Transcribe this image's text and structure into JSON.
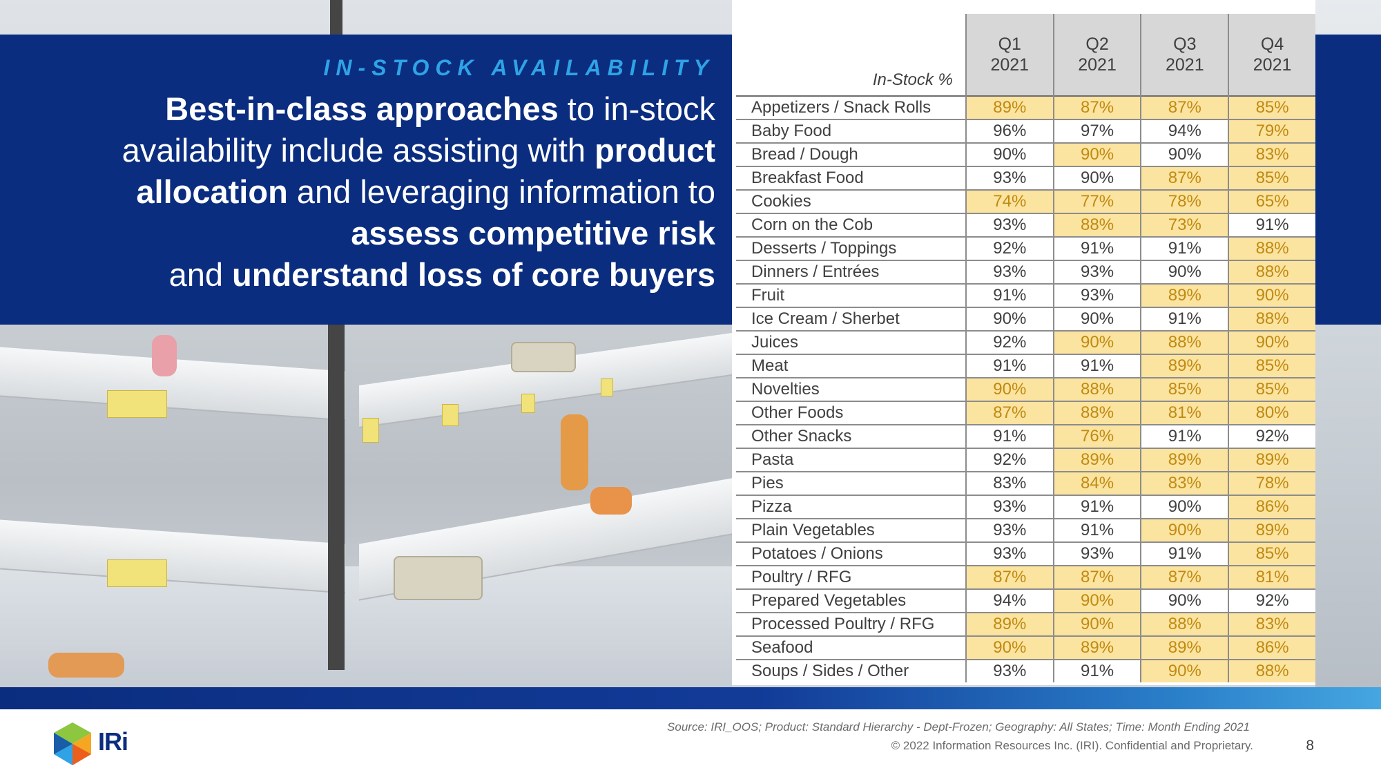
{
  "header": {
    "eyebrow": "IN-STOCK AVAILABILITY",
    "headline": {
      "p1_bold": "Best-in-class approaches",
      "p1": " to in-stock availability include assisting with ",
      "p2_bold": "product allocation",
      "p2": " and leveraging information to ",
      "p3_bold": "assess competitive risk",
      "p3": " and ",
      "p4_bold": "understand loss of core buyers"
    }
  },
  "table": {
    "label_header": "In-Stock %",
    "quarters": [
      {
        "q": "Q1",
        "year": "2021"
      },
      {
        "q": "Q2",
        "year": "2021"
      },
      {
        "q": "Q3",
        "year": "2021"
      },
      {
        "q": "Q4",
        "year": "2021"
      }
    ],
    "rows": [
      {
        "category": "Appetizers / Snack Rolls",
        "values": [
          "89%",
          "87%",
          "87%",
          "85%"
        ],
        "highlight": [
          true,
          true,
          true,
          true
        ]
      },
      {
        "category": "Baby Food",
        "values": [
          "96%",
          "97%",
          "94%",
          "79%"
        ],
        "highlight": [
          false,
          false,
          false,
          true
        ]
      },
      {
        "category": "Bread / Dough",
        "values": [
          "90%",
          "90%",
          "90%",
          "83%"
        ],
        "highlight": [
          false,
          true,
          false,
          true
        ]
      },
      {
        "category": "Breakfast Food",
        "values": [
          "93%",
          "90%",
          "87%",
          "85%"
        ],
        "highlight": [
          false,
          false,
          true,
          true
        ]
      },
      {
        "category": "Cookies",
        "values": [
          "74%",
          "77%",
          "78%",
          "65%"
        ],
        "highlight": [
          true,
          true,
          true,
          true
        ]
      },
      {
        "category": "Corn on the Cob",
        "values": [
          "93%",
          "88%",
          "73%",
          "91%"
        ],
        "highlight": [
          false,
          true,
          true,
          false
        ]
      },
      {
        "category": "Desserts / Toppings",
        "values": [
          "92%",
          "91%",
          "91%",
          "88%"
        ],
        "highlight": [
          false,
          false,
          false,
          true
        ]
      },
      {
        "category": "Dinners / Entrées",
        "values": [
          "93%",
          "93%",
          "90%",
          "88%"
        ],
        "highlight": [
          false,
          false,
          false,
          true
        ]
      },
      {
        "category": "Fruit",
        "values": [
          "91%",
          "93%",
          "89%",
          "90%"
        ],
        "highlight": [
          false,
          false,
          true,
          true
        ]
      },
      {
        "category": "Ice Cream / Sherbet",
        "values": [
          "90%",
          "90%",
          "91%",
          "88%"
        ],
        "highlight": [
          false,
          false,
          false,
          true
        ]
      },
      {
        "category": "Juices",
        "values": [
          "92%",
          "90%",
          "88%",
          "90%"
        ],
        "highlight": [
          false,
          true,
          true,
          true
        ]
      },
      {
        "category": "Meat",
        "values": [
          "91%",
          "91%",
          "89%",
          "85%"
        ],
        "highlight": [
          false,
          false,
          true,
          true
        ]
      },
      {
        "category": "Novelties",
        "values": [
          "90%",
          "88%",
          "85%",
          "85%"
        ],
        "highlight": [
          true,
          true,
          true,
          true
        ]
      },
      {
        "category": "Other Foods",
        "values": [
          "87%",
          "88%",
          "81%",
          "80%"
        ],
        "highlight": [
          true,
          true,
          true,
          true
        ]
      },
      {
        "category": "Other Snacks",
        "values": [
          "91%",
          "76%",
          "91%",
          "92%"
        ],
        "highlight": [
          false,
          true,
          false,
          false
        ]
      },
      {
        "category": "Pasta",
        "values": [
          "92%",
          "89%",
          "89%",
          "89%"
        ],
        "highlight": [
          false,
          true,
          true,
          true
        ]
      },
      {
        "category": "Pies",
        "values": [
          "83%",
          "84%",
          "83%",
          "78%"
        ],
        "highlight": [
          false,
          true,
          true,
          true
        ]
      },
      {
        "category": "Pizza",
        "values": [
          "93%",
          "91%",
          "90%",
          "86%"
        ],
        "highlight": [
          false,
          false,
          false,
          true
        ]
      },
      {
        "category": "Plain Vegetables",
        "values": [
          "93%",
          "91%",
          "90%",
          "89%"
        ],
        "highlight": [
          false,
          false,
          true,
          true
        ]
      },
      {
        "category": "Potatoes / Onions",
        "values": [
          "93%",
          "93%",
          "91%",
          "85%"
        ],
        "highlight": [
          false,
          false,
          false,
          true
        ]
      },
      {
        "category": "Poultry / RFG",
        "values": [
          "87%",
          "87%",
          "87%",
          "81%"
        ],
        "highlight": [
          true,
          true,
          true,
          true
        ]
      },
      {
        "category": "Prepared Vegetables",
        "values": [
          "94%",
          "90%",
          "90%",
          "92%"
        ],
        "highlight": [
          false,
          true,
          false,
          false
        ]
      },
      {
        "category": "Processed Poultry / RFG",
        "values": [
          "89%",
          "90%",
          "88%",
          "83%"
        ],
        "highlight": [
          true,
          true,
          true,
          true
        ]
      },
      {
        "category": "Seafood",
        "values": [
          "90%",
          "89%",
          "89%",
          "86%"
        ],
        "highlight": [
          true,
          true,
          true,
          true
        ]
      },
      {
        "category": "Soups / Sides / Other",
        "values": [
          "93%",
          "91%",
          "90%",
          "88%"
        ],
        "highlight": [
          false,
          false,
          true,
          true
        ]
      }
    ]
  },
  "footer": {
    "source": "Source: IRI_OOS; Product:  Standard Hierarchy - Dept-Frozen; Geography:  All States; Time:  Month Ending 2021",
    "copyright": "© 2022 Information Resources Inc. (IRI). Confidential and Proprietary.",
    "page_number": "8",
    "logo_text": "IRi"
  },
  "colors": {
    "navy": "#0b2d7f",
    "accent_blue": "#2fa3e6",
    "highlight_fill": "#fbe3a0",
    "highlight_text": "#c08a10"
  }
}
